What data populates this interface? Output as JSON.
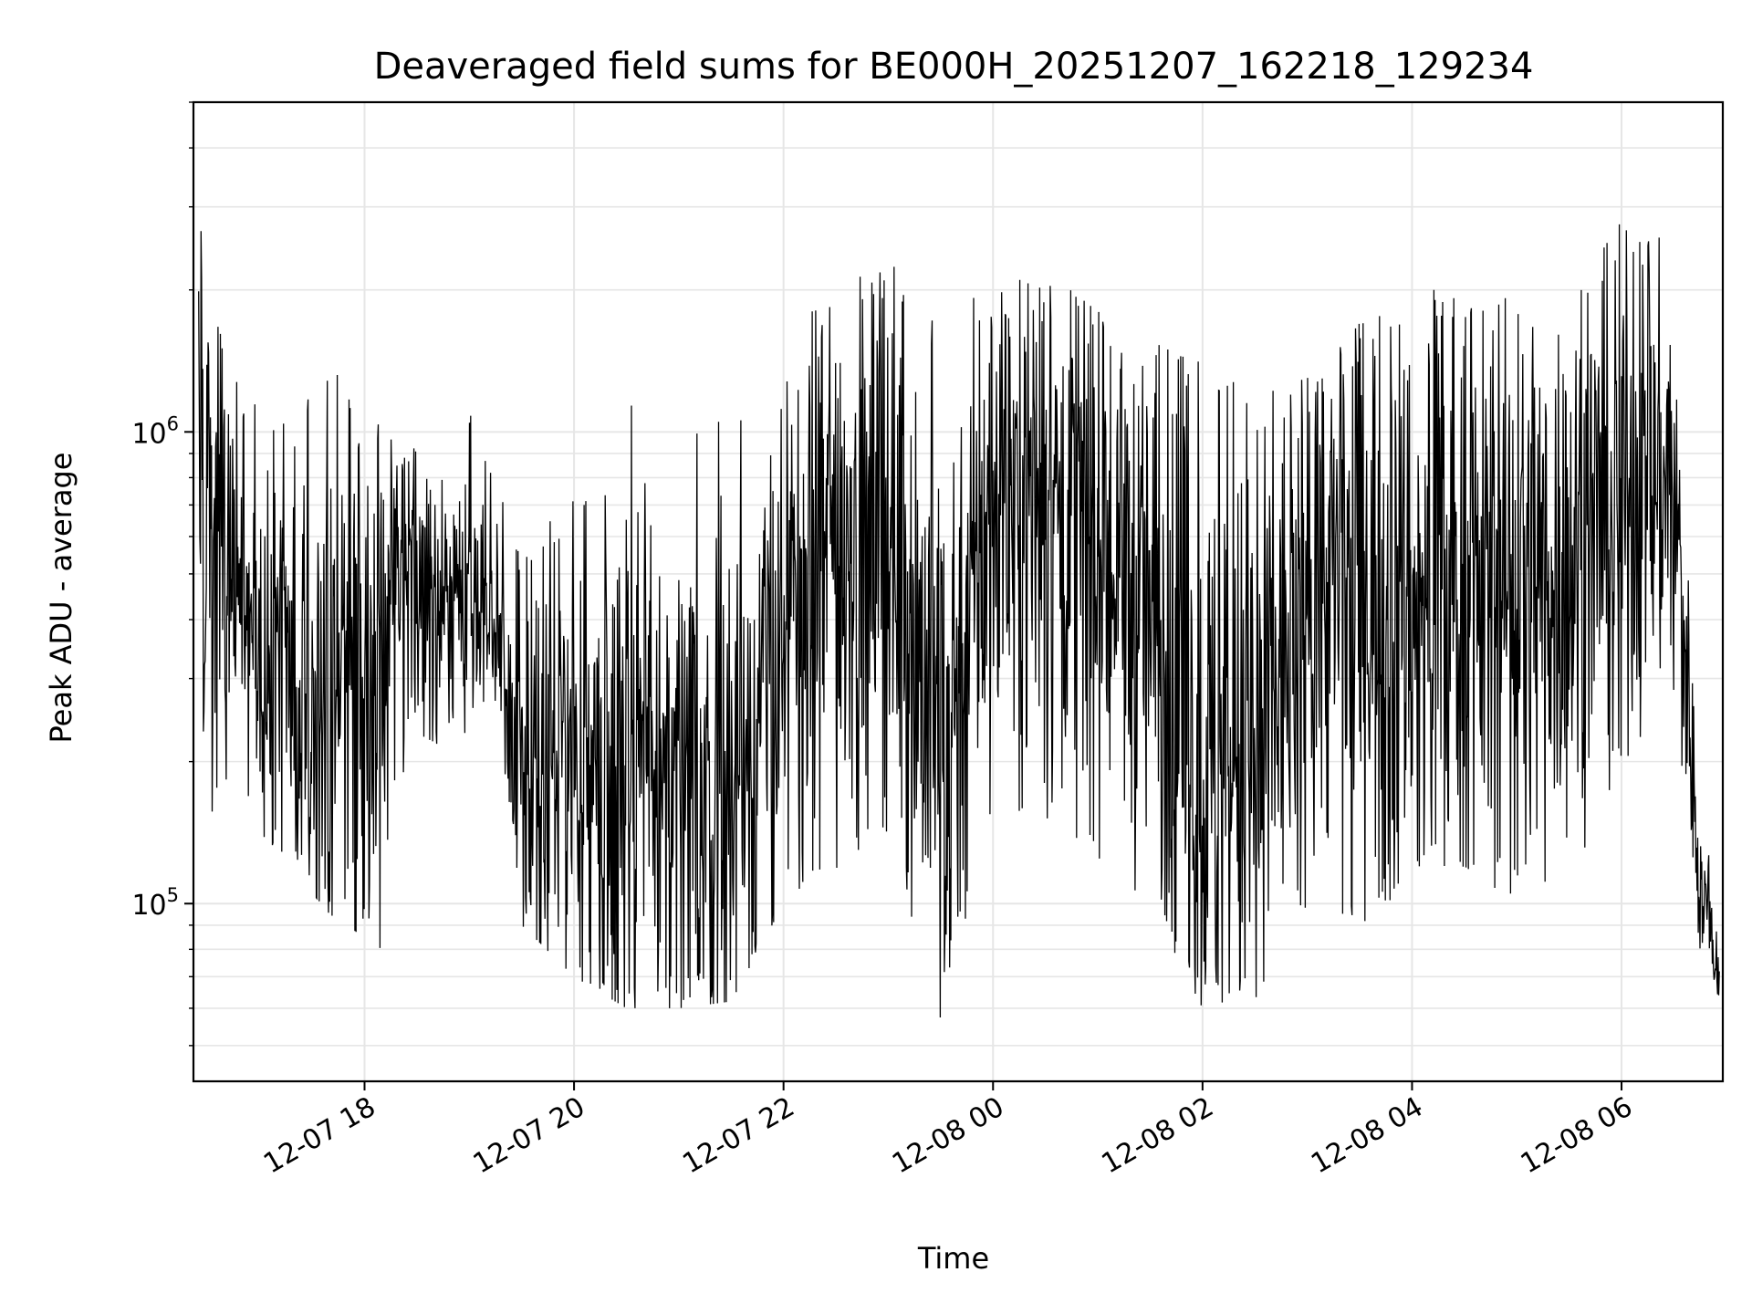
{
  "chart_data": {
    "type": "line",
    "title": "Deaveraged field sums for BE000H_20251207_162218_129234",
    "xlabel": "Time",
    "ylabel": "Peak ADU - average",
    "y_scale": "log",
    "ylim": [
      42000,
      5000000
    ],
    "xlim": [
      "2025-12-07 16:22",
      "2025-12-08 06:58"
    ],
    "grid": true,
    "line_color": "#000000",
    "grid_color": "#e6e6e6",
    "x_ticks": [
      {
        "t": "2025-12-07 18:00",
        "label": "12-07 18"
      },
      {
        "t": "2025-12-07 20:00",
        "label": "12-07 20"
      },
      {
        "t": "2025-12-07 22:00",
        "label": "12-07 22"
      },
      {
        "t": "2025-12-08 00:00",
        "label": "12-08 00"
      },
      {
        "t": "2025-12-08 02:00",
        "label": "12-08 02"
      },
      {
        "t": "2025-12-08 04:00",
        "label": "12-08 04"
      },
      {
        "t": "2025-12-08 06:00",
        "label": "12-08 06"
      }
    ],
    "y_ticks": [
      {
        "v": 100000,
        "base": "10",
        "exp": "5"
      },
      {
        "v": 1000000,
        "base": "10",
        "exp": "6"
      }
    ],
    "series": [
      {
        "name": "",
        "envelope": [
          {
            "t": "2025-12-07 16:25",
            "median": 800000,
            "low": 150000,
            "high": 3000000
          },
          {
            "t": "2025-12-07 16:45",
            "median": 500000,
            "low": 160000,
            "high": 1300000
          },
          {
            "t": "2025-12-07 17:10",
            "median": 330000,
            "low": 130000,
            "high": 1000000
          },
          {
            "t": "2025-12-07 17:40",
            "median": 260000,
            "low": 95000,
            "high": 1400000
          },
          {
            "t": "2025-12-07 18:10",
            "median": 300000,
            "low": 80000,
            "high": 1200000
          },
          {
            "t": "2025-12-07 18:30",
            "median": 470000,
            "low": 230000,
            "high": 900000
          },
          {
            "t": "2025-12-07 19:00",
            "median": 450000,
            "low": 200000,
            "high": 1100000
          },
          {
            "t": "2025-12-07 19:15",
            "median": 430000,
            "low": 270000,
            "high": 800000
          },
          {
            "t": "2025-12-07 19:30",
            "median": 190000,
            "low": 90000,
            "high": 550000
          },
          {
            "t": "2025-12-07 20:00",
            "median": 210000,
            "low": 70000,
            "high": 800000
          },
          {
            "t": "2025-12-07 20:30",
            "median": 220000,
            "low": 60000,
            "high": 1200000
          },
          {
            "t": "2025-12-07 21:00",
            "median": 180000,
            "low": 60000,
            "high": 1000000
          },
          {
            "t": "2025-12-07 21:30",
            "median": 170000,
            "low": 62000,
            "high": 1100000
          },
          {
            "t": "2025-12-07 22:00",
            "median": 380000,
            "low": 100000,
            "high": 1600000
          },
          {
            "t": "2025-12-07 22:30",
            "median": 600000,
            "low": 110000,
            "high": 2000000
          },
          {
            "t": "2025-12-07 23:00",
            "median": 650000,
            "low": 140000,
            "high": 2300000
          },
          {
            "t": "2025-12-07 23:30",
            "median": 220000,
            "low": 57000,
            "high": 1800000
          },
          {
            "t": "2025-12-08 00:00",
            "median": 720000,
            "low": 150000,
            "high": 2000000
          },
          {
            "t": "2025-12-08 00:30",
            "median": 750000,
            "low": 150000,
            "high": 2200000
          },
          {
            "t": "2025-12-08 01:00",
            "median": 550000,
            "low": 120000,
            "high": 1800000
          },
          {
            "t": "2025-12-08 01:30",
            "median": 400000,
            "low": 100000,
            "high": 1600000
          },
          {
            "t": "2025-12-08 02:00",
            "median": 180000,
            "low": 60000,
            "high": 1400000
          },
          {
            "t": "2025-12-08 02:30",
            "median": 200000,
            "low": 60000,
            "high": 1200000
          },
          {
            "t": "2025-12-08 03:00",
            "median": 450000,
            "low": 100000,
            "high": 1300000
          },
          {
            "t": "2025-12-08 03:30",
            "median": 500000,
            "low": 90000,
            "high": 1700000
          },
          {
            "t": "2025-12-08 04:00",
            "median": 450000,
            "low": 110000,
            "high": 2000000
          },
          {
            "t": "2025-12-08 04:30",
            "median": 430000,
            "low": 120000,
            "high": 2000000
          },
          {
            "t": "2025-12-08 05:00",
            "median": 500000,
            "low": 100000,
            "high": 1900000
          },
          {
            "t": "2025-12-08 05:30",
            "median": 520000,
            "low": 110000,
            "high": 1900000
          },
          {
            "t": "2025-12-08 06:00",
            "median": 750000,
            "low": 200000,
            "high": 2800000
          },
          {
            "t": "2025-12-08 06:30",
            "median": 800000,
            "low": 250000,
            "high": 2500000
          },
          {
            "t": "2025-12-08 06:45",
            "median": 110000,
            "low": 80000,
            "high": 180000
          },
          {
            "t": "2025-12-08 06:56",
            "median": 70000,
            "low": 60000,
            "high": 90000
          }
        ]
      }
    ]
  }
}
